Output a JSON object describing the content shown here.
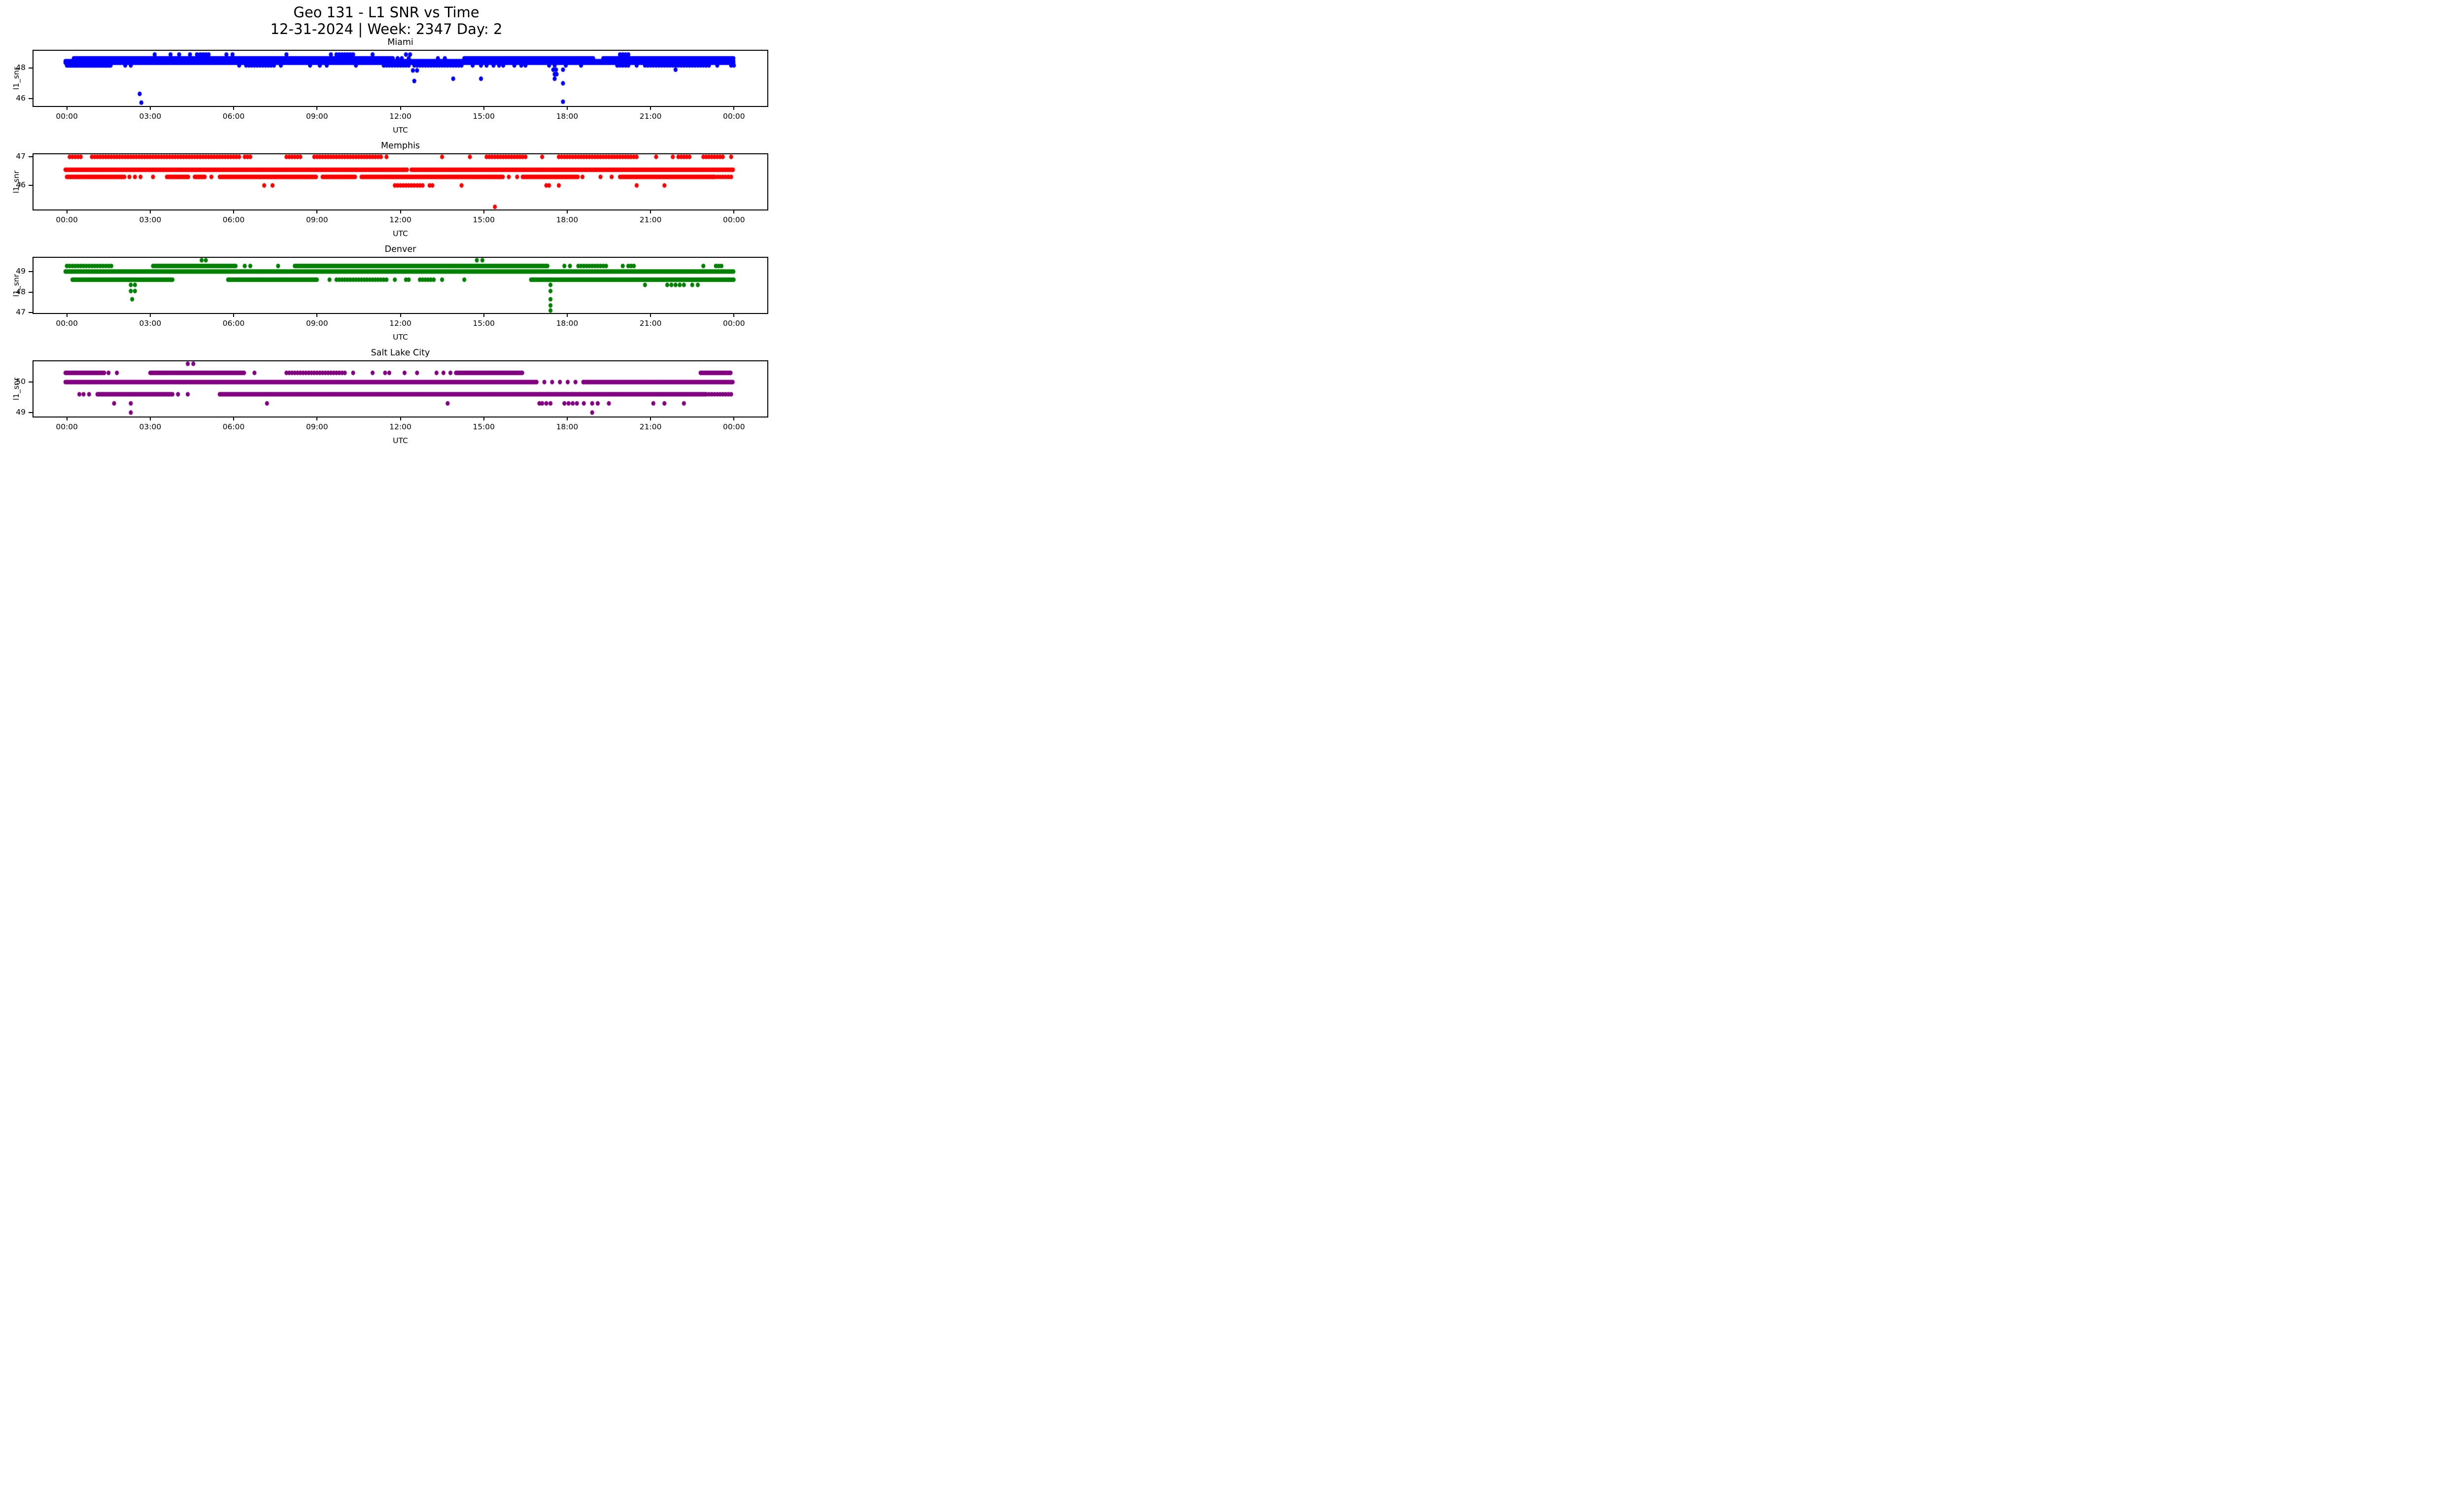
{
  "title": {
    "line1": "Geo 131 - L1 SNR vs Time",
    "line2": "12-31-2024 | Week: 2347 Day: 2"
  },
  "axis": {
    "xlabel": "UTC",
    "ylabel": "l1_snr",
    "x_ticks": [
      "00:00",
      "03:00",
      "06:00",
      "09:00",
      "12:00",
      "15:00",
      "18:00",
      "21:00",
      "00:00"
    ],
    "x_tick_hours": [
      0,
      3,
      6,
      9,
      12,
      15,
      18,
      21,
      24
    ],
    "x_view": [
      -1.2,
      25.2
    ],
    "grid": false
  },
  "chart_data": [
    {
      "type": "scatter",
      "title": "Miami",
      "color": "#0000ff",
      "y_view": [
        45.5,
        49.15
      ],
      "y_ticks": [
        {
          "v": 48,
          "label": "48"
        },
        {
          "v": 46,
          "label": "46"
        }
      ],
      "bands": [
        {
          "y": 48.9,
          "style": "dense",
          "segments": [
            [
              4.8,
              5.15
            ],
            [
              9.7,
              10.35
            ],
            [
              19.9,
              20.3
            ]
          ]
        },
        {
          "y": 48.65,
          "style": "solid",
          "segments": [
            [
              0.25,
              11.75
            ],
            [
              14.3,
              18.95
            ],
            [
              19.3,
              24.0
            ]
          ]
        },
        {
          "y": 48.46,
          "style": "solid",
          "segments": [
            [
              -0.05,
              24.0
            ]
          ]
        },
        {
          "y": 48.36,
          "style": "solid",
          "segments": [
            [
              -0.05,
              24.0
            ]
          ]
        },
        {
          "y": 48.18,
          "style": "solid",
          "segments": [
            [
              0.0,
              1.6
            ]
          ]
        },
        {
          "y": 48.18,
          "style": "dense",
          "segments": [
            [
              6.45,
              7.5
            ],
            [
              11.4,
              12.3
            ],
            [
              12.5,
              14.2
            ],
            [
              19.8,
              20.3
            ],
            [
              20.8,
              23.2
            ]
          ]
        }
      ],
      "points": [
        [
          3.16,
          48.9
        ],
        [
          3.73,
          48.9
        ],
        [
          4.04,
          48.9
        ],
        [
          4.43,
          48.9
        ],
        [
          4.68,
          48.9
        ],
        [
          5.74,
          48.9
        ],
        [
          5.96,
          48.9
        ],
        [
          7.9,
          48.9
        ],
        [
          9.5,
          48.9
        ],
        [
          11.0,
          48.9
        ],
        [
          12.2,
          48.9
        ],
        [
          12.35,
          48.9
        ],
        [
          11.9,
          48.65
        ],
        [
          12.05,
          48.65
        ],
        [
          12.3,
          48.65
        ],
        [
          13.35,
          48.65
        ],
        [
          13.6,
          48.65
        ],
        [
          2.1,
          48.18
        ],
        [
          2.3,
          48.18
        ],
        [
          6.2,
          48.18
        ],
        [
          7.7,
          48.18
        ],
        [
          8.75,
          48.18
        ],
        [
          9.1,
          48.18
        ],
        [
          9.35,
          48.18
        ],
        [
          10.4,
          48.18
        ],
        [
          14.6,
          48.18
        ],
        [
          14.9,
          48.18
        ],
        [
          15.1,
          48.18
        ],
        [
          15.35,
          48.18
        ],
        [
          15.55,
          48.18
        ],
        [
          15.7,
          48.18
        ],
        [
          16.1,
          48.18
        ],
        [
          16.35,
          48.18
        ],
        [
          16.5,
          48.18
        ],
        [
          17.35,
          48.18
        ],
        [
          17.55,
          48.18
        ],
        [
          17.95,
          48.18
        ],
        [
          18.5,
          48.18
        ],
        [
          20.5,
          48.18
        ],
        [
          23.4,
          48.18
        ],
        [
          23.9,
          48.18
        ],
        [
          24.0,
          48.18
        ],
        [
          2.62,
          46.3
        ],
        [
          2.68,
          45.72
        ],
        [
          12.45,
          47.85
        ],
        [
          12.6,
          47.85
        ],
        [
          12.5,
          47.15
        ],
        [
          13.9,
          47.3
        ],
        [
          14.9,
          47.3
        ],
        [
          17.5,
          47.9
        ],
        [
          17.6,
          47.9
        ],
        [
          17.55,
          47.6
        ],
        [
          17.62,
          47.6
        ],
        [
          17.55,
          47.3
        ],
        [
          17.85,
          47.9
        ],
        [
          17.85,
          47.0
        ],
        [
          17.85,
          45.78
        ],
        [
          21.9,
          47.9
        ]
      ]
    },
    {
      "type": "scatter",
      "title": "Memphis",
      "color": "#ff0000",
      "y_view": [
        45.16,
        47.09
      ],
      "y_ticks": [
        {
          "v": 47,
          "label": "47"
        },
        {
          "v": 46,
          "label": "46"
        }
      ],
      "bands": [
        {
          "y": 47.0,
          "style": "dense",
          "segments": [
            [
              0.1,
              0.5
            ],
            [
              0.9,
              6.2
            ],
            [
              6.4,
              6.6
            ],
            [
              7.9,
              8.4
            ],
            [
              8.9,
              11.3
            ],
            [
              15.1,
              16.6
            ],
            [
              17.7,
              20.6
            ],
            [
              22.0,
              22.5
            ],
            [
              22.9,
              23.7
            ]
          ]
        },
        {
          "y": 46.55,
          "style": "solid",
          "segments": [
            [
              -0.05,
              12.25
            ],
            [
              12.4,
              24.0
            ]
          ]
        },
        {
          "y": 46.3,
          "style": "solid",
          "segments": [
            [
              0.0,
              2.1
            ],
            [
              3.6,
              4.4
            ],
            [
              4.6,
              5.0
            ],
            [
              5.5,
              9.0
            ],
            [
              9.2,
              10.4
            ],
            [
              10.6,
              15.7
            ],
            [
              16.4,
              18.4
            ],
            [
              19.9,
              23.3
            ]
          ]
        },
        {
          "y": 46.3,
          "style": "dense",
          "segments": [
            [
              23.3,
              23.95
            ]
          ]
        },
        {
          "y": 46.0,
          "style": "dense",
          "segments": [
            [
              11.8,
              12.8
            ]
          ]
        }
      ],
      "points": [
        [
          11.5,
          47.0
        ],
        [
          13.5,
          47.0
        ],
        [
          14.5,
          47.0
        ],
        [
          17.1,
          47.0
        ],
        [
          21.2,
          47.0
        ],
        [
          21.8,
          47.0
        ],
        [
          23.9,
          47.0
        ],
        [
          2.25,
          46.3
        ],
        [
          2.45,
          46.3
        ],
        [
          2.65,
          46.3
        ],
        [
          3.1,
          46.3
        ],
        [
          5.2,
          46.3
        ],
        [
          15.9,
          46.3
        ],
        [
          16.2,
          46.3
        ],
        [
          18.55,
          46.3
        ],
        [
          19.2,
          46.3
        ],
        [
          19.6,
          46.3
        ],
        [
          7.1,
          46.0
        ],
        [
          7.4,
          46.0
        ],
        [
          13.05,
          46.0
        ],
        [
          13.15,
          46.0
        ],
        [
          14.2,
          46.0
        ],
        [
          17.25,
          46.0
        ],
        [
          17.35,
          46.0
        ],
        [
          17.7,
          46.0
        ],
        [
          20.5,
          46.0
        ],
        [
          21.5,
          46.0
        ],
        [
          15.4,
          45.25
        ]
      ]
    },
    {
      "type": "scatter",
      "title": "Denver",
      "color": "#008000",
      "y_view": [
        46.98,
        49.67
      ],
      "y_ticks": [
        {
          "v": 49,
          "label": "49"
        },
        {
          "v": 48,
          "label": "48"
        },
        {
          "v": 47,
          "label": "47"
        }
      ],
      "bands": [
        {
          "y": 49.27,
          "style": "dense",
          "segments": [
            [
              0.0,
              1.65
            ],
            [
              18.4,
              19.5
            ],
            [
              20.2,
              20.5
            ],
            [
              23.35,
              23.65
            ]
          ]
        },
        {
          "y": 49.27,
          "style": "solid",
          "segments": [
            [
              3.1,
              6.1
            ],
            [
              8.2,
              17.3
            ]
          ]
        },
        {
          "y": 49.0,
          "style": "solid",
          "segments": [
            [
              -0.05,
              24.0
            ]
          ]
        },
        {
          "y": 48.6,
          "style": "solid",
          "segments": [
            [
              0.2,
              3.8
            ],
            [
              5.8,
              9.0
            ],
            [
              16.7,
              24.0
            ]
          ]
        },
        {
          "y": 48.6,
          "style": "dense",
          "segments": [
            [
              9.7,
              11.5
            ],
            [
              12.7,
              13.2
            ]
          ]
        }
      ],
      "points": [
        [
          4.85,
          49.55
        ],
        [
          5.0,
          49.55
        ],
        [
          14.75,
          49.55
        ],
        [
          14.95,
          49.55
        ],
        [
          6.4,
          49.27
        ],
        [
          6.6,
          49.27
        ],
        [
          7.6,
          49.27
        ],
        [
          17.9,
          49.27
        ],
        [
          18.1,
          49.27
        ],
        [
          20.0,
          49.27
        ],
        [
          22.9,
          49.27
        ],
        [
          9.45,
          48.6
        ],
        [
          11.8,
          48.6
        ],
        [
          12.2,
          48.6
        ],
        [
          12.3,
          48.6
        ],
        [
          13.5,
          48.6
        ],
        [
          14.3,
          48.6
        ],
        [
          2.3,
          48.35
        ],
        [
          2.45,
          48.35
        ],
        [
          2.3,
          48.05
        ],
        [
          2.45,
          48.05
        ],
        [
          2.35,
          47.65
        ],
        [
          17.4,
          48.35
        ],
        [
          17.4,
          48.05
        ],
        [
          17.4,
          47.65
        ],
        [
          17.4,
          47.35
        ],
        [
          17.4,
          47.1
        ],
        [
          20.8,
          48.35
        ],
        [
          21.6,
          48.35
        ],
        [
          21.75,
          48.35
        ],
        [
          21.9,
          48.35
        ],
        [
          22.05,
          48.35
        ],
        [
          22.2,
          48.35
        ],
        [
          22.5,
          48.35
        ],
        [
          22.7,
          48.35
        ]
      ]
    },
    {
      "type": "scatter",
      "title": "Salt Lake City",
      "color": "#800080",
      "y_view": [
        48.87,
        50.68
      ],
      "y_ticks": [
        {
          "v": 50,
          "label": "50"
        },
        {
          "v": 49,
          "label": "49"
        }
      ],
      "bands": [
        {
          "y": 50.3,
          "style": "solid",
          "segments": [
            [
              -0.05,
              1.35
            ],
            [
              3.0,
              6.4
            ],
            [
              14.0,
              16.4
            ],
            [
              22.8,
              23.9
            ]
          ]
        },
        {
          "y": 50.3,
          "style": "dense",
          "segments": [
            [
              7.9,
              10.0
            ]
          ]
        },
        {
          "y": 50.0,
          "style": "solid",
          "segments": [
            [
              -0.05,
              16.9
            ],
            [
              18.6,
              24.0
            ]
          ]
        },
        {
          "y": 50.0,
          "style": "medium",
          "segments": [
            [
              16.9,
              18.6
            ]
          ]
        },
        {
          "y": 49.6,
          "style": "solid",
          "segments": [
            [
              1.1,
              3.8
            ],
            [
              5.5,
              23.0
            ]
          ]
        },
        {
          "y": 49.6,
          "style": "dense",
          "segments": [
            [
              23.0,
              24.0
            ]
          ]
        }
      ],
      "points": [
        [
          4.35,
          50.6
        ],
        [
          4.55,
          50.6
        ],
        [
          1.5,
          50.3
        ],
        [
          1.8,
          50.3
        ],
        [
          6.75,
          50.3
        ],
        [
          10.3,
          50.3
        ],
        [
          11.0,
          50.3
        ],
        [
          11.45,
          50.3
        ],
        [
          11.6,
          50.3
        ],
        [
          12.15,
          50.3
        ],
        [
          12.6,
          50.3
        ],
        [
          13.3,
          50.3
        ],
        [
          13.55,
          50.3
        ],
        [
          13.8,
          50.3
        ],
        [
          0.45,
          49.6
        ],
        [
          0.6,
          49.6
        ],
        [
          0.8,
          49.6
        ],
        [
          4.0,
          49.6
        ],
        [
          4.35,
          49.6
        ],
        [
          1.7,
          49.3
        ],
        [
          2.3,
          49.3
        ],
        [
          7.2,
          49.3
        ],
        [
          13.7,
          49.3
        ],
        [
          17.0,
          49.3
        ],
        [
          17.1,
          49.3
        ],
        [
          17.25,
          49.3
        ],
        [
          17.4,
          49.3
        ],
        [
          17.9,
          49.3
        ],
        [
          18.05,
          49.3
        ],
        [
          18.2,
          49.3
        ],
        [
          18.35,
          49.3
        ],
        [
          18.6,
          49.3
        ],
        [
          18.9,
          49.3
        ],
        [
          19.1,
          49.3
        ],
        [
          19.5,
          49.3
        ],
        [
          21.1,
          49.3
        ],
        [
          21.5,
          49.3
        ],
        [
          22.2,
          49.3
        ],
        [
          2.3,
          49.0
        ],
        [
          18.9,
          49.0
        ]
      ]
    }
  ]
}
